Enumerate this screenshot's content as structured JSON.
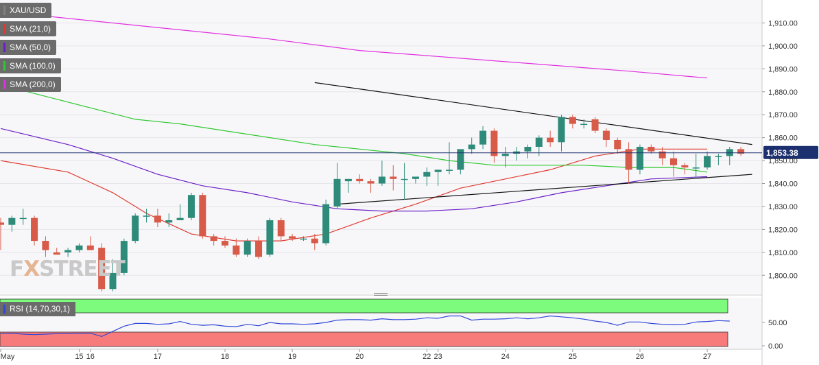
{
  "watermark": {
    "fx": "F",
    "x": "X",
    "street": "STREET"
  },
  "legend": [
    {
      "label": "XAU/USD",
      "color": "#7f7f7f"
    },
    {
      "label": "SMA (21,0)",
      "color": "#e0392f"
    },
    {
      "label": "SMA (50,0)",
      "color": "#6a1fc8"
    },
    {
      "label": "SMA (100,0)",
      "color": "#2fc82f"
    },
    {
      "label": "SMA (200,0)",
      "color": "#e030e0"
    }
  ],
  "rsi_label": "RSI (14,70,30,1)",
  "colors": {
    "up": "#2e8b7a",
    "down": "#d85a48",
    "rsi_line": "#2f46d8",
    "rsi_overbought": "#7dfb7d",
    "rsi_oversold": "#f77b7b",
    "price_line": "#1c2f6e"
  },
  "chart_data": {
    "type": "candlestick",
    "symbol": "XAU/USD",
    "last_price_label": "1,853.38",
    "last_price": 1853.38,
    "ylim": [
      1792,
      1920
    ],
    "y_ticks": [
      1800,
      1810,
      1820,
      1830,
      1840,
      1850,
      1860,
      1870,
      1880,
      1890,
      1900,
      1910
    ],
    "y_tick_labels": [
      "1,800.00",
      "1,810.00",
      "1,820.00",
      "1,830.00",
      "1,840.00",
      "1,850.00",
      "1,860.00",
      "1,870.00",
      "1,880.00",
      "1,890.00",
      "1,900.00",
      "1,910.00"
    ],
    "x_labels": [
      "May",
      "15",
      "16",
      "17",
      "18",
      "19",
      "20",
      "22",
      "23",
      "24",
      "25",
      "26",
      "27"
    ],
    "x_label_index": [
      0,
      7,
      8,
      14,
      20,
      26,
      32,
      38,
      39,
      45,
      51,
      57,
      63
    ],
    "candles": [
      [
        1823,
        1825,
        1811,
        1822
      ],
      [
        1822,
        1826,
        1819,
        1825
      ],
      [
        1825,
        1829,
        1822,
        1825
      ],
      [
        1825,
        1826,
        1813,
        1815
      ],
      [
        1815,
        1817,
        1808,
        1811
      ],
      [
        1810,
        1812,
        1809,
        1809
      ],
      [
        1810,
        1812,
        1808,
        1811
      ],
      [
        1811,
        1814,
        1810,
        1813
      ],
      [
        1813,
        1817,
        1811,
        1811
      ],
      [
        1812,
        1814,
        1793,
        1794
      ],
      [
        1794,
        1807,
        1793,
        1801
      ],
      [
        1801,
        1816,
        1800,
        1815
      ],
      [
        1815,
        1827,
        1814,
        1826
      ],
      [
        1826,
        1829,
        1823,
        1826
      ],
      [
        1826,
        1829,
        1821,
        1823
      ],
      [
        1823,
        1827,
        1821,
        1824
      ],
      [
        1824,
        1831,
        1824,
        1825
      ],
      [
        1825,
        1836,
        1824,
        1835
      ],
      [
        1835,
        1836,
        1816,
        1817
      ],
      [
        1817,
        1818,
        1813,
        1815
      ],
      [
        1815,
        1817,
        1812,
        1813
      ],
      [
        1813,
        1816,
        1808,
        1809
      ],
      [
        1809,
        1816,
        1808,
        1815
      ],
      [
        1815,
        1817,
        1807,
        1808
      ],
      [
        1809,
        1825,
        1808,
        1824
      ],
      [
        1824,
        1825,
        1815,
        1817
      ],
      [
        1817,
        1818,
        1815,
        1816
      ],
      [
        1816,
        1817,
        1815,
        1816
      ],
      [
        1816,
        1818,
        1811,
        1814
      ],
      [
        1814,
        1833,
        1813,
        1831
      ],
      [
        1830,
        1849,
        1829,
        1842
      ],
      [
        1841,
        1842,
        1836,
        1842
      ],
      [
        1842,
        1844,
        1840,
        1841
      ],
      [
        1841,
        1842,
        1836,
        1840
      ],
      [
        1840,
        1850,
        1839,
        1843
      ],
      [
        1843,
        1848,
        1837,
        1842
      ],
      [
        1842,
        1849,
        1833,
        1842
      ],
      [
        1842,
        1843,
        1840,
        1843
      ],
      [
        1843,
        1847,
        1839,
        1845
      ],
      [
        1845,
        1846,
        1839,
        1846
      ],
      [
        1846,
        1858,
        1844,
        1846
      ],
      [
        1846,
        1855,
        1844,
        1855
      ],
      [
        1855,
        1860,
        1853,
        1857
      ],
      [
        1857,
        1865,
        1855,
        1863
      ],
      [
        1863,
        1864,
        1849,
        1852
      ],
      [
        1852,
        1856,
        1847,
        1853
      ],
      [
        1853,
        1856,
        1850,
        1854
      ],
      [
        1854,
        1857,
        1851,
        1856
      ],
      [
        1856,
        1861,
        1852,
        1860
      ],
      [
        1860,
        1863,
        1856,
        1858
      ],
      [
        1858,
        1870,
        1854,
        1869
      ],
      [
        1869,
        1870,
        1864,
        1866
      ],
      [
        1866,
        1868,
        1864,
        1866
      ],
      [
        1868,
        1869,
        1862,
        1863
      ],
      [
        1863,
        1864,
        1856,
        1859
      ],
      [
        1859,
        1860,
        1853,
        1855
      ],
      [
        1855,
        1858,
        1840,
        1846
      ],
      [
        1846,
        1857,
        1844,
        1856
      ],
      [
        1856,
        1857,
        1853,
        1854
      ],
      [
        1854,
        1856,
        1848,
        1851
      ],
      [
        1851,
        1854,
        1843,
        1848
      ],
      [
        1848,
        1849,
        1844,
        1847
      ],
      [
        1847,
        1853,
        1842,
        1847
      ],
      [
        1847,
        1854,
        1846,
        1852
      ],
      [
        1852,
        1853,
        1848,
        1852
      ],
      [
        1852,
        1856,
        1848,
        1855
      ],
      [
        1855,
        1856,
        1852,
        1853
      ]
    ],
    "sma": [
      {
        "name": "SMA (21,0)",
        "color": "#e0392f",
        "points": [
          [
            0,
            1850
          ],
          [
            6,
            1845
          ],
          [
            10,
            1836
          ],
          [
            13,
            1827
          ],
          [
            17,
            1818
          ],
          [
            21,
            1815
          ],
          [
            25,
            1815
          ],
          [
            29,
            1818
          ],
          [
            33,
            1825
          ],
          [
            37,
            1831
          ],
          [
            41,
            1838
          ],
          [
            45,
            1842
          ],
          [
            49,
            1846
          ],
          [
            53,
            1852
          ],
          [
            57,
            1855
          ],
          [
            61,
            1855
          ],
          [
            63,
            1855
          ]
        ]
      },
      {
        "name": "SMA (50,0)",
        "color": "#6a1fc8",
        "points": [
          [
            0,
            1864
          ],
          [
            6,
            1857
          ],
          [
            10,
            1851
          ],
          [
            14,
            1844
          ],
          [
            18,
            1839
          ],
          [
            22,
            1836
          ],
          [
            26,
            1832
          ],
          [
            30,
            1829
          ],
          [
            34,
            1828
          ],
          [
            38,
            1828
          ],
          [
            42,
            1829
          ],
          [
            46,
            1832
          ],
          [
            50,
            1836
          ],
          [
            54,
            1839
          ],
          [
            58,
            1842
          ],
          [
            63,
            1843
          ]
        ]
      },
      {
        "name": "SMA (100,0)",
        "color": "#2fc82f",
        "points": [
          [
            0,
            1883
          ],
          [
            4,
            1878
          ],
          [
            8,
            1873
          ],
          [
            12,
            1868
          ],
          [
            16,
            1866
          ],
          [
            20,
            1863
          ],
          [
            24,
            1860
          ],
          [
            28,
            1857
          ],
          [
            32,
            1855
          ],
          [
            36,
            1853
          ],
          [
            40,
            1850
          ],
          [
            44,
            1848
          ],
          [
            48,
            1848
          ],
          [
            52,
            1848
          ],
          [
            56,
            1847
          ],
          [
            60,
            1847
          ],
          [
            63,
            1845
          ]
        ]
      },
      {
        "name": "SMA (200,0)",
        "color": "#e030e0",
        "points": [
          [
            0,
            1915
          ],
          [
            8,
            1911
          ],
          [
            16,
            1907
          ],
          [
            24,
            1903
          ],
          [
            32,
            1898
          ],
          [
            40,
            1895
          ],
          [
            48,
            1892
          ],
          [
            56,
            1889
          ],
          [
            63,
            1886
          ]
        ]
      }
    ],
    "trendlines": [
      {
        "from": [
          28,
          1884
        ],
        "to": [
          67,
          1857
        ]
      },
      {
        "from": [
          30,
          1831
        ],
        "to": [
          67,
          1844
        ]
      }
    ],
    "rsi": {
      "label": "RSI (14,70,30,1)",
      "ylim": [
        0,
        100
      ],
      "ticks": [
        0,
        50
      ],
      "tick_labels": [
        "0.00",
        "50.00"
      ],
      "overbought": 70,
      "oversold": 30,
      "values": [
        26,
        27,
        25,
        24,
        25,
        26,
        26,
        27,
        27,
        20,
        31,
        42,
        48,
        48,
        46,
        47,
        52,
        46,
        44,
        45,
        42,
        41,
        46,
        43,
        50,
        47,
        47,
        46,
        47,
        50,
        55,
        56,
        56,
        55,
        58,
        56,
        56,
        57,
        60,
        59,
        64,
        64,
        55,
        57,
        57,
        58,
        60,
        58,
        60,
        64,
        62,
        60,
        57,
        53,
        50,
        44,
        51,
        51,
        48,
        46,
        45,
        46,
        51,
        52,
        54,
        53
      ]
    }
  }
}
